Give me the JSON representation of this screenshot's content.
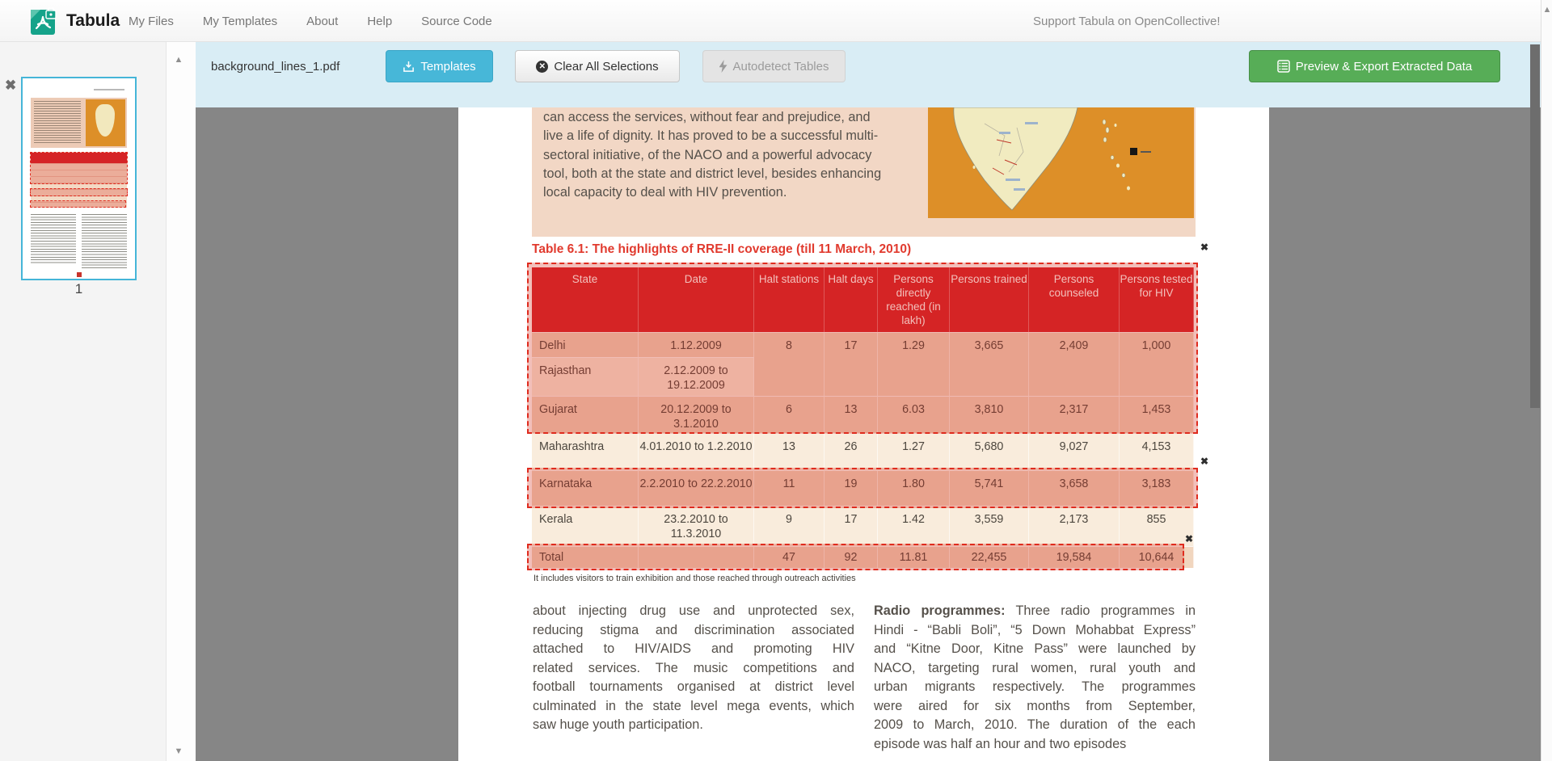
{
  "navbar": {
    "brand": "Tabula",
    "items": [
      {
        "label": "My Files"
      },
      {
        "label": "My Templates"
      },
      {
        "label": "About"
      },
      {
        "label": "Help"
      },
      {
        "label": "Source Code"
      }
    ],
    "support_link": "Support Tabula on OpenCollective!"
  },
  "toolbar": {
    "filename": "background_lines_1.pdf",
    "templates_label": "Templates",
    "clear_label": "Clear All Selections",
    "autodetect_label": "Autodetect Tables",
    "export_label": "Preview & Export Extracted Data"
  },
  "sidebar": {
    "page_number": "1"
  },
  "pdf": {
    "intro_lines": [
      "can access the services, without fear and prejudice, and",
      "live a life of dignity. It has proved to be a successful multi-",
      "sectoral initiative, of the NACO and a powerful advocacy",
      "tool, both at the state and district level, besides enhancing",
      "local capacity to deal with HIV prevention."
    ],
    "table_title": "Table 6.1: The highlights of RRE-II coverage (till 11 March, 2010)",
    "footnote": "It includes visitors to train exhibition and those reached through outreach activities",
    "left_col_lines": [
      "about injecting drug use and unprotected sex,",
      "reducing stigma and discrimination associated",
      "attached to HIV/AIDS and promoting HIV",
      "related services. The music competitions and",
      "football tournaments organised at district level",
      "culminated in the state level mega events, which",
      "saw huge youth participation."
    ],
    "right_col_lines": [
      {
        "lead": "Radio programmes:",
        "rest": " Three radio programmes in"
      },
      "Hindi - “Babli Boli”, “5 Down Mohabbat Express”",
      "and “Kitne Door, Kitne Pass” were launched by",
      "NACO, targeting rural women, rural youth and",
      "urban migrants respectively. The programmes",
      "were aired for six months from September,",
      "2009 to March, 2010. The duration of the each",
      "episode was half an hour and two episodes"
    ]
  },
  "table": {
    "headers": [
      "State",
      "Date",
      "Halt stations",
      "Halt days",
      "Persons directly reached (in lakh)",
      "Persons trained",
      "Persons counseled",
      "Persons tested for HIV"
    ],
    "rows": [
      [
        "Delhi",
        "1.12.2009",
        "8",
        "17",
        "1.29",
        "3,665",
        "2,409",
        "1,000"
      ],
      [
        "Rajasthan",
        "2.12.2009 to 19.12.2009",
        "",
        "",
        "",
        "",
        "",
        ""
      ],
      [
        "Gujarat",
        "20.12.2009 to 3.1.2010",
        "6",
        "13",
        "6.03",
        "3,810",
        "2,317",
        "1,453"
      ],
      [
        "Maharashtra",
        "4.01.2010 to 1.2.2010",
        "13",
        "26",
        "1.27",
        "5,680",
        "9,027",
        "4,153"
      ],
      [
        "Karnataka",
        "2.2.2010 to 22.2.2010",
        "11",
        "19",
        "1.80",
        "5,741",
        "3,658",
        "3,183"
      ],
      [
        "Kerala",
        "23.2.2010 to 11.3.2010",
        "9",
        "17",
        "1.42",
        "3,559",
        "2,173",
        "855"
      ],
      [
        "Total",
        "",
        "47",
        "92",
        "11.81",
        "22,455",
        "19,584",
        "10,644"
      ]
    ]
  },
  "colors": {
    "toolbar_bg": "#d9edf5",
    "templates_button": "#47b7d8",
    "export_button": "#57ad57",
    "selection_red": "#df2b1e",
    "table_header_red": "#d6212a",
    "thumbnail_border": "#45b5d8"
  }
}
